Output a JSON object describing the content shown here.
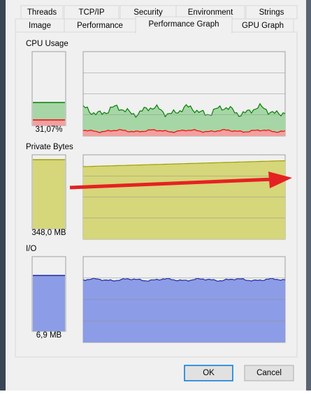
{
  "tabs": {
    "row1": [
      "Threads",
      "TCP/IP",
      "Security",
      "Environment",
      "Strings"
    ],
    "row2": [
      "Image",
      "Performance",
      "Performance Graph",
      "GPU Graph"
    ]
  },
  "panels": [
    {
      "label": "CPU Usage",
      "value_label": "31,07%"
    },
    {
      "label": "Private Bytes",
      "value_label": "348,0 MB"
    },
    {
      "label": "I/O",
      "value_label": "6,9  MB"
    }
  ],
  "buttons": {
    "ok": "OK",
    "cancel": "Cancel"
  }
}
